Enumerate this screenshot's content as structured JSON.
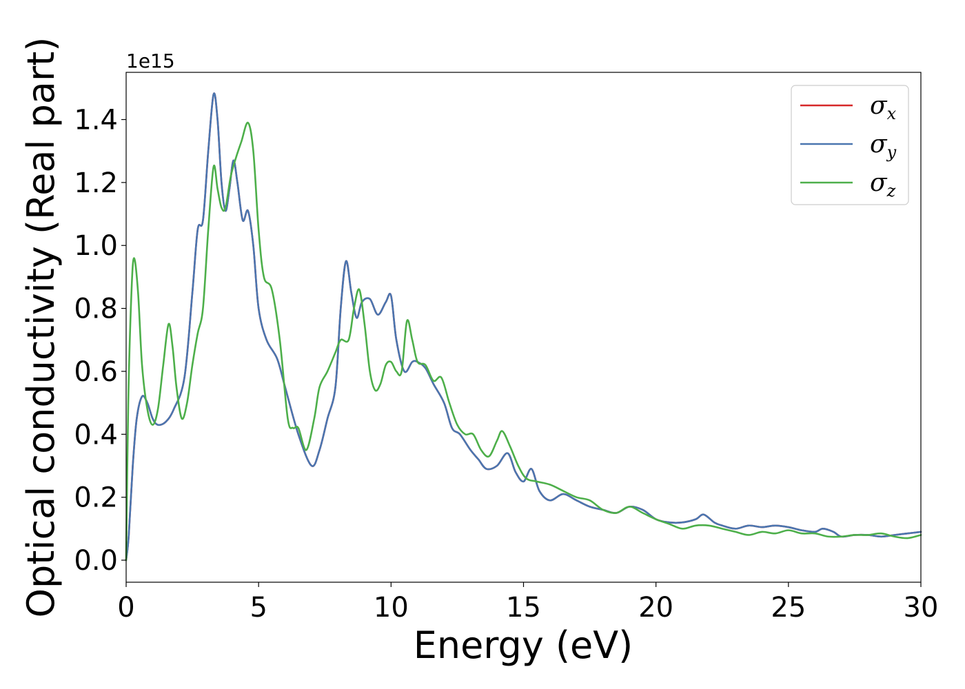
{
  "chart_data": {
    "type": "line",
    "xlabel": "Energy (eV)",
    "ylabel": "Optical conductivity (Real part)",
    "y_offset_label": "1e15",
    "xlim": [
      0,
      30
    ],
    "ylim": [
      -0.07,
      1.55
    ],
    "xticks": [
      0,
      5,
      10,
      15,
      20,
      25,
      30
    ],
    "xtick_labels": [
      "0",
      "5",
      "10",
      "15",
      "20",
      "25",
      "30"
    ],
    "yticks": [
      0.0,
      0.2,
      0.4,
      0.6,
      0.8,
      1.0,
      1.2,
      1.4
    ],
    "ytick_labels": [
      "0.0",
      "0.2",
      "0.4",
      "0.6",
      "0.8",
      "1.0",
      "1.2",
      "1.4"
    ],
    "grid": false,
    "legend_position": "top-right",
    "series": [
      {
        "name": "σx",
        "legend_base": "σ",
        "legend_sub": "x",
        "color": "#d62728",
        "points": [
          [
            0,
            0.0
          ],
          [
            0.1,
            0.08
          ],
          [
            0.25,
            0.3
          ],
          [
            0.4,
            0.45
          ],
          [
            0.6,
            0.52
          ],
          [
            0.8,
            0.5
          ],
          [
            1.0,
            0.45
          ],
          [
            1.2,
            0.43
          ],
          [
            1.5,
            0.44
          ],
          [
            1.8,
            0.48
          ],
          [
            2.2,
            0.58
          ],
          [
            2.5,
            0.85
          ],
          [
            2.7,
            1.05
          ],
          [
            2.9,
            1.08
          ],
          [
            3.1,
            1.3
          ],
          [
            3.3,
            1.48
          ],
          [
            3.45,
            1.4
          ],
          [
            3.6,
            1.2
          ],
          [
            3.75,
            1.11
          ],
          [
            3.9,
            1.18
          ],
          [
            4.05,
            1.27
          ],
          [
            4.2,
            1.2
          ],
          [
            4.4,
            1.08
          ],
          [
            4.6,
            1.11
          ],
          [
            4.8,
            1.0
          ],
          [
            5.0,
            0.8
          ],
          [
            5.3,
            0.7
          ],
          [
            5.7,
            0.64
          ],
          [
            6.0,
            0.55
          ],
          [
            6.5,
            0.4
          ],
          [
            7.0,
            0.3
          ],
          [
            7.3,
            0.35
          ],
          [
            7.6,
            0.45
          ],
          [
            7.9,
            0.55
          ],
          [
            8.1,
            0.8
          ],
          [
            8.3,
            0.95
          ],
          [
            8.5,
            0.85
          ],
          [
            8.7,
            0.77
          ],
          [
            8.9,
            0.82
          ],
          [
            9.2,
            0.83
          ],
          [
            9.5,
            0.78
          ],
          [
            9.8,
            0.82
          ],
          [
            10.0,
            0.84
          ],
          [
            10.2,
            0.7
          ],
          [
            10.5,
            0.6
          ],
          [
            10.8,
            0.63
          ],
          [
            11.0,
            0.63
          ],
          [
            11.3,
            0.61
          ],
          [
            11.6,
            0.56
          ],
          [
            12.0,
            0.5
          ],
          [
            12.3,
            0.42
          ],
          [
            12.6,
            0.4
          ],
          [
            13.0,
            0.35
          ],
          [
            13.3,
            0.32
          ],
          [
            13.6,
            0.29
          ],
          [
            14.0,
            0.3
          ],
          [
            14.4,
            0.34
          ],
          [
            14.7,
            0.28
          ],
          [
            15.0,
            0.25
          ],
          [
            15.3,
            0.29
          ],
          [
            15.6,
            0.22
          ],
          [
            16.0,
            0.19
          ],
          [
            16.5,
            0.21
          ],
          [
            17.0,
            0.19
          ],
          [
            17.5,
            0.17
          ],
          [
            18.0,
            0.16
          ],
          [
            18.5,
            0.15
          ],
          [
            19.0,
            0.17
          ],
          [
            19.5,
            0.16
          ],
          [
            20.0,
            0.13
          ],
          [
            20.5,
            0.12
          ],
          [
            21.0,
            0.12
          ],
          [
            21.5,
            0.13
          ],
          [
            21.8,
            0.145
          ],
          [
            22.2,
            0.12
          ],
          [
            22.5,
            0.11
          ],
          [
            23.0,
            0.1
          ],
          [
            23.5,
            0.11
          ],
          [
            24.0,
            0.105
          ],
          [
            24.5,
            0.11
          ],
          [
            25.0,
            0.105
          ],
          [
            25.5,
            0.095
          ],
          [
            26.0,
            0.09
          ],
          [
            26.3,
            0.1
          ],
          [
            26.7,
            0.09
          ],
          [
            27.0,
            0.075
          ],
          [
            27.5,
            0.08
          ],
          [
            28.0,
            0.08
          ],
          [
            28.5,
            0.075
          ],
          [
            29.0,
            0.08
          ],
          [
            29.5,
            0.085
          ],
          [
            30.0,
            0.09
          ]
        ]
      },
      {
        "name": "σy",
        "legend_base": "σ",
        "legend_sub": "y",
        "color": "#4a76b0",
        "points": [
          [
            0,
            0.0
          ],
          [
            0.1,
            0.08
          ],
          [
            0.25,
            0.3
          ],
          [
            0.4,
            0.45
          ],
          [
            0.6,
            0.52
          ],
          [
            0.8,
            0.5
          ],
          [
            1.0,
            0.45
          ],
          [
            1.2,
            0.43
          ],
          [
            1.5,
            0.44
          ],
          [
            1.8,
            0.48
          ],
          [
            2.2,
            0.58
          ],
          [
            2.5,
            0.85
          ],
          [
            2.7,
            1.05
          ],
          [
            2.9,
            1.08
          ],
          [
            3.1,
            1.3
          ],
          [
            3.3,
            1.48
          ],
          [
            3.45,
            1.4
          ],
          [
            3.6,
            1.2
          ],
          [
            3.75,
            1.11
          ],
          [
            3.9,
            1.18
          ],
          [
            4.05,
            1.27
          ],
          [
            4.2,
            1.2
          ],
          [
            4.4,
            1.08
          ],
          [
            4.6,
            1.11
          ],
          [
            4.8,
            1.0
          ],
          [
            5.0,
            0.8
          ],
          [
            5.3,
            0.7
          ],
          [
            5.7,
            0.64
          ],
          [
            6.0,
            0.55
          ],
          [
            6.5,
            0.4
          ],
          [
            7.0,
            0.3
          ],
          [
            7.3,
            0.35
          ],
          [
            7.6,
            0.45
          ],
          [
            7.9,
            0.55
          ],
          [
            8.1,
            0.8
          ],
          [
            8.3,
            0.95
          ],
          [
            8.5,
            0.85
          ],
          [
            8.7,
            0.77
          ],
          [
            8.9,
            0.82
          ],
          [
            9.2,
            0.83
          ],
          [
            9.5,
            0.78
          ],
          [
            9.8,
            0.82
          ],
          [
            10.0,
            0.84
          ],
          [
            10.2,
            0.7
          ],
          [
            10.5,
            0.6
          ],
          [
            10.8,
            0.63
          ],
          [
            11.0,
            0.63
          ],
          [
            11.3,
            0.61
          ],
          [
            11.6,
            0.56
          ],
          [
            12.0,
            0.5
          ],
          [
            12.3,
            0.42
          ],
          [
            12.6,
            0.4
          ],
          [
            13.0,
            0.35
          ],
          [
            13.3,
            0.32
          ],
          [
            13.6,
            0.29
          ],
          [
            14.0,
            0.3
          ],
          [
            14.4,
            0.34
          ],
          [
            14.7,
            0.28
          ],
          [
            15.0,
            0.25
          ],
          [
            15.3,
            0.29
          ],
          [
            15.6,
            0.22
          ],
          [
            16.0,
            0.19
          ],
          [
            16.5,
            0.21
          ],
          [
            17.0,
            0.19
          ],
          [
            17.5,
            0.17
          ],
          [
            18.0,
            0.16
          ],
          [
            18.5,
            0.15
          ],
          [
            19.0,
            0.17
          ],
          [
            19.5,
            0.16
          ],
          [
            20.0,
            0.13
          ],
          [
            20.5,
            0.12
          ],
          [
            21.0,
            0.12
          ],
          [
            21.5,
            0.13
          ],
          [
            21.8,
            0.145
          ],
          [
            22.2,
            0.12
          ],
          [
            22.5,
            0.11
          ],
          [
            23.0,
            0.1
          ],
          [
            23.5,
            0.11
          ],
          [
            24.0,
            0.105
          ],
          [
            24.5,
            0.11
          ],
          [
            25.0,
            0.105
          ],
          [
            25.5,
            0.095
          ],
          [
            26.0,
            0.09
          ],
          [
            26.3,
            0.1
          ],
          [
            26.7,
            0.09
          ],
          [
            27.0,
            0.075
          ],
          [
            27.5,
            0.08
          ],
          [
            28.0,
            0.08
          ],
          [
            28.5,
            0.075
          ],
          [
            29.0,
            0.08
          ],
          [
            29.5,
            0.085
          ],
          [
            30.0,
            0.09
          ]
        ]
      },
      {
        "name": "σz",
        "legend_base": "σ",
        "legend_sub": "z",
        "color": "#4daf4a",
        "points": [
          [
            0,
            0.0
          ],
          [
            0.08,
            0.5
          ],
          [
            0.2,
            0.85
          ],
          [
            0.3,
            0.96
          ],
          [
            0.45,
            0.85
          ],
          [
            0.6,
            0.62
          ],
          [
            0.8,
            0.48
          ],
          [
            1.0,
            0.43
          ],
          [
            1.2,
            0.48
          ],
          [
            1.4,
            0.62
          ],
          [
            1.6,
            0.75
          ],
          [
            1.75,
            0.68
          ],
          [
            1.9,
            0.55
          ],
          [
            2.1,
            0.45
          ],
          [
            2.3,
            0.5
          ],
          [
            2.5,
            0.62
          ],
          [
            2.7,
            0.72
          ],
          [
            2.9,
            0.8
          ],
          [
            3.1,
            1.05
          ],
          [
            3.3,
            1.25
          ],
          [
            3.45,
            1.18
          ],
          [
            3.6,
            1.12
          ],
          [
            3.75,
            1.12
          ],
          [
            3.95,
            1.22
          ],
          [
            4.15,
            1.28
          ],
          [
            4.35,
            1.33
          ],
          [
            4.6,
            1.39
          ],
          [
            4.8,
            1.3
          ],
          [
            5.0,
            1.05
          ],
          [
            5.2,
            0.9
          ],
          [
            5.5,
            0.86
          ],
          [
            5.8,
            0.7
          ],
          [
            6.1,
            0.45
          ],
          [
            6.3,
            0.42
          ],
          [
            6.5,
            0.42
          ],
          [
            6.8,
            0.35
          ],
          [
            7.1,
            0.45
          ],
          [
            7.3,
            0.55
          ],
          [
            7.6,
            0.6
          ],
          [
            7.9,
            0.66
          ],
          [
            8.1,
            0.7
          ],
          [
            8.4,
            0.7
          ],
          [
            8.6,
            0.8
          ],
          [
            8.8,
            0.86
          ],
          [
            9.0,
            0.75
          ],
          [
            9.2,
            0.6
          ],
          [
            9.4,
            0.54
          ],
          [
            9.6,
            0.56
          ],
          [
            9.8,
            0.62
          ],
          [
            10.0,
            0.63
          ],
          [
            10.2,
            0.6
          ],
          [
            10.4,
            0.6
          ],
          [
            10.6,
            0.76
          ],
          [
            10.8,
            0.7
          ],
          [
            11.0,
            0.63
          ],
          [
            11.3,
            0.62
          ],
          [
            11.6,
            0.57
          ],
          [
            11.9,
            0.58
          ],
          [
            12.2,
            0.5
          ],
          [
            12.5,
            0.43
          ],
          [
            12.8,
            0.4
          ],
          [
            13.1,
            0.4
          ],
          [
            13.4,
            0.35
          ],
          [
            13.7,
            0.33
          ],
          [
            14.0,
            0.38
          ],
          [
            14.2,
            0.41
          ],
          [
            14.5,
            0.36
          ],
          [
            14.8,
            0.3
          ],
          [
            15.1,
            0.26
          ],
          [
            15.5,
            0.25
          ],
          [
            16.0,
            0.24
          ],
          [
            16.5,
            0.22
          ],
          [
            17.0,
            0.2
          ],
          [
            17.5,
            0.19
          ],
          [
            18.0,
            0.16
          ],
          [
            18.5,
            0.15
          ],
          [
            19.0,
            0.17
          ],
          [
            19.5,
            0.15
          ],
          [
            20.0,
            0.13
          ],
          [
            20.5,
            0.115
          ],
          [
            21.0,
            0.1
          ],
          [
            21.5,
            0.11
          ],
          [
            22.0,
            0.11
          ],
          [
            22.5,
            0.1
          ],
          [
            23.0,
            0.09
          ],
          [
            23.5,
            0.08
          ],
          [
            24.0,
            0.09
          ],
          [
            24.5,
            0.085
          ],
          [
            25.0,
            0.095
          ],
          [
            25.5,
            0.085
          ],
          [
            26.0,
            0.085
          ],
          [
            26.5,
            0.075
          ],
          [
            27.0,
            0.075
          ],
          [
            27.5,
            0.08
          ],
          [
            28.0,
            0.08
          ],
          [
            28.5,
            0.085
          ],
          [
            29.0,
            0.075
          ],
          [
            29.5,
            0.07
          ],
          [
            30.0,
            0.08
          ]
        ]
      }
    ]
  }
}
